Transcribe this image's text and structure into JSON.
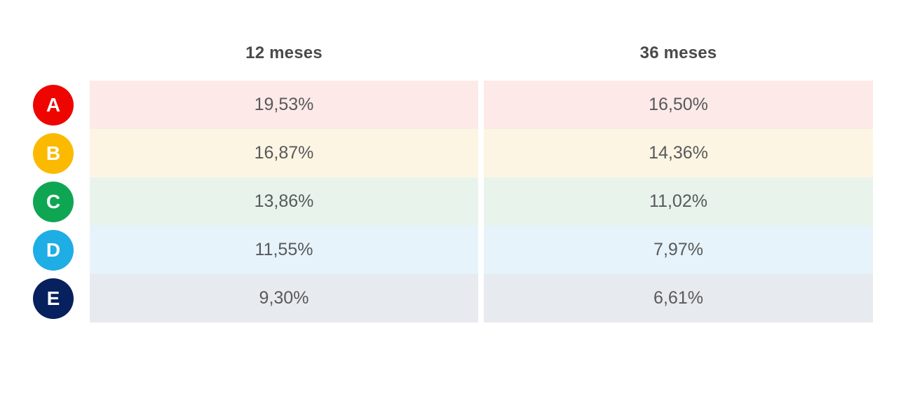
{
  "header": {
    "col1": "12 meses",
    "col2": "36 meses"
  },
  "rows": [
    {
      "label": "A",
      "color": "#ee0500",
      "tint": "#fce9e8",
      "m12": "19,53%",
      "m36": "16,50%"
    },
    {
      "label": "B",
      "color": "#fbba00",
      "tint": "#fdf5e3",
      "m12": "16,87%",
      "m36": "14,36%"
    },
    {
      "label": "C",
      "color": "#0fa653",
      "tint": "#e8f3ec",
      "m12": "13,86%",
      "m36": "11,02%"
    },
    {
      "label": "D",
      "color": "#1fade6",
      "tint": "#e6f3fa",
      "m12": "11,55%",
      "m36": "7,97%"
    },
    {
      "label": "E",
      "color": "#07215e",
      "tint": "#e7eaee",
      "m12": "9,30%",
      "m36": "6,61%"
    }
  ],
  "colors": {
    "header_text": "#4a4a4a",
    "value_text": "#58595b",
    "background": "#ffffff",
    "badge_letter": "#ffffff"
  },
  "chart_data": {
    "type": "table",
    "title": "",
    "categories": [
      "A",
      "B",
      "C",
      "D",
      "E"
    ],
    "columns": [
      "12 meses",
      "36 meses"
    ],
    "series": [
      {
        "name": "12 meses",
        "values": [
          19.53,
          16.87,
          13.86,
          11.55,
          9.3
        ]
      },
      {
        "name": "36 meses",
        "values": [
          16.5,
          14.36,
          11.02,
          7.97,
          6.61
        ]
      }
    ],
    "value_format": "percent-comma-decimal",
    "legend_position": "left-badges",
    "grid": false
  }
}
